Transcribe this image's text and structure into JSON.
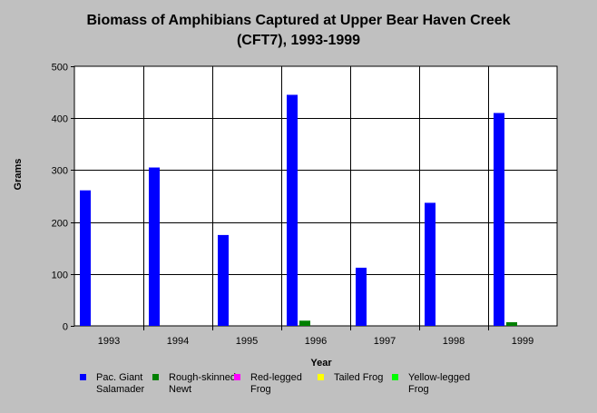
{
  "chart_data": {
    "type": "bar",
    "title_line1": "Biomass of Amphibians Captured at Upper Bear Haven Creek",
    "title_line2": "(CFT7), 1993-1999",
    "xlabel": "Year",
    "ylabel": "Grams",
    "ylim": [
      0,
      500
    ],
    "yticks": [
      "0",
      "100",
      "200",
      "300",
      "400",
      "500"
    ],
    "categories": [
      "1993",
      "1994",
      "1995",
      "1996",
      "1997",
      "1998",
      "1999"
    ],
    "grid": true,
    "legend_position": "bottom",
    "series": [
      {
        "name": "Pac. Giant Salamader",
        "color": "#0000ff",
        "values": [
          261,
          305,
          175,
          445,
          112,
          237,
          410
        ]
      },
      {
        "name": "Rough-skinned Newt",
        "color": "#008000",
        "values": [
          0,
          0,
          0,
          10,
          0,
          0,
          7
        ]
      },
      {
        "name": "Red-legged Frog",
        "color": "#ff00ff",
        "values": [
          0,
          0,
          0,
          0,
          0,
          0,
          0
        ]
      },
      {
        "name": "Tailed Frog",
        "color": "#ffff00",
        "values": [
          0,
          0,
          0,
          0,
          0,
          0,
          0
        ]
      },
      {
        "name": "Yellow-legged Frog",
        "color": "#00ff00",
        "values": [
          0,
          0,
          0,
          0,
          0,
          0,
          0
        ]
      }
    ]
  }
}
